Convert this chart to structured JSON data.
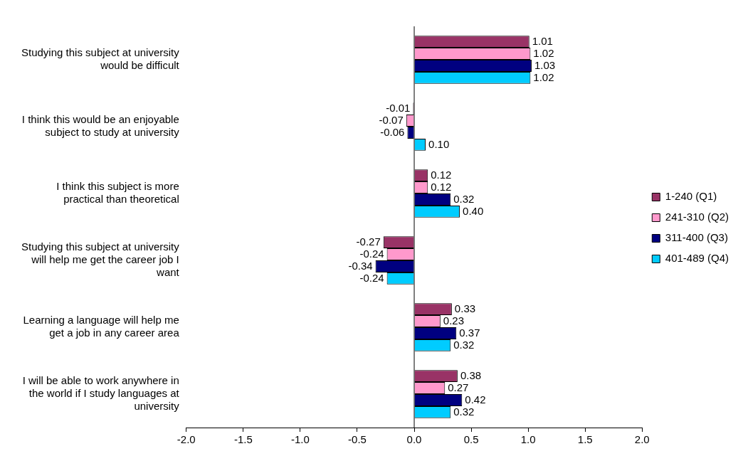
{
  "chart_data": {
    "type": "bar",
    "orientation": "horizontal",
    "categories": [
      "Studying this subject at university would be difficult",
      "I think this would be an enjoyable subject to study at university",
      "I think this subject is more practical than theoretical",
      "Studying this subject at university will help me get the career job I want",
      "Learning a language will help me get a job in any career area",
      "I will be able to work anywhere in the world if I study languages at university"
    ],
    "series": [
      {
        "name": "1-240 (Q1)",
        "color": "#993366",
        "values": [
          1.01,
          -0.01,
          0.12,
          -0.27,
          0.33,
          0.38
        ],
        "value_labels": [
          "1.01",
          "-0.01",
          "0.12",
          "-0.27",
          "0.33",
          "0.38"
        ]
      },
      {
        "name": "241-310 (Q2)",
        "color": "#ff99cc",
        "values": [
          1.02,
          -0.07,
          0.12,
          -0.24,
          0.23,
          0.27
        ],
        "value_labels": [
          "1.02",
          "-0.07",
          "0.12",
          "-0.24",
          "0.23",
          "0.27"
        ]
      },
      {
        "name": "311-400 (Q3)",
        "color": "#000080",
        "values": [
          1.03,
          -0.06,
          0.32,
          -0.34,
          0.37,
          0.42
        ],
        "value_labels": [
          "1.03",
          "-0.06",
          "0.32",
          "-0.34",
          "0.37",
          "0.42"
        ]
      },
      {
        "name": "401-489 (Q4)",
        "color": "#00ccff",
        "values": [
          1.02,
          0.1,
          0.4,
          -0.24,
          0.32,
          0.32
        ],
        "value_labels": [
          "1.02",
          "0.10",
          "0.40",
          "-0.24",
          "0.32",
          "0.32"
        ]
      }
    ],
    "xlim": [
      -2,
      2
    ],
    "xticks": [
      {
        "value": -2,
        "label": "-2.0"
      },
      {
        "value": -1.5,
        "label": "-1.5"
      },
      {
        "value": -1,
        "label": "-1.0"
      },
      {
        "value": -0.5,
        "label": "-0.5"
      },
      {
        "value": 0,
        "label": "0.0"
      },
      {
        "value": 0.5,
        "label": "0.5"
      },
      {
        "value": 1,
        "label": "1.0"
      },
      {
        "value": 1.5,
        "label": "1.5"
      },
      {
        "value": 2,
        "label": "2.0"
      }
    ],
    "legend": "right"
  }
}
